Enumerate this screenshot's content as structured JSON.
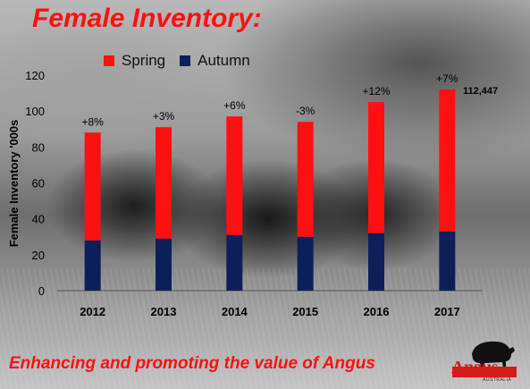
{
  "header": {
    "title": "Female Inventory:"
  },
  "footer": {
    "tagline": "Enhancing and promoting the value of Angus"
  },
  "logo": {
    "text": "Angus",
    "subtext": "AUSTRALIA",
    "icon": "bull-icon"
  },
  "colors": {
    "spring": "#ff1010",
    "autumn": "#0d1f5a",
    "title": "#ff1010"
  },
  "chart_data": {
    "type": "bar",
    "stacked": true,
    "categories": [
      "2012",
      "2013",
      "2014",
      "2015",
      "2016",
      "2017"
    ],
    "series": [
      {
        "name": "Autumn",
        "values": [
          28,
          29,
          31,
          30,
          32,
          33
        ]
      },
      {
        "name": "Spring",
        "values": [
          60,
          62,
          66,
          64,
          73,
          79
        ]
      }
    ],
    "totals": [
      88,
      91,
      97,
      94,
      105,
      112
    ],
    "change_labels": [
      "+8%",
      "+3%",
      "+6%",
      "-3%",
      "+12%",
      "+7%"
    ],
    "total_annotation": "112,447",
    "ylabel": "Female Inventory '000s",
    "xlabel": "",
    "ylim": [
      0,
      120
    ],
    "yticks": [
      0,
      20,
      40,
      60,
      80,
      100,
      120
    ],
    "legend": {
      "position": "top",
      "entries": [
        "Spring",
        "Autumn"
      ]
    },
    "grid": false
  }
}
